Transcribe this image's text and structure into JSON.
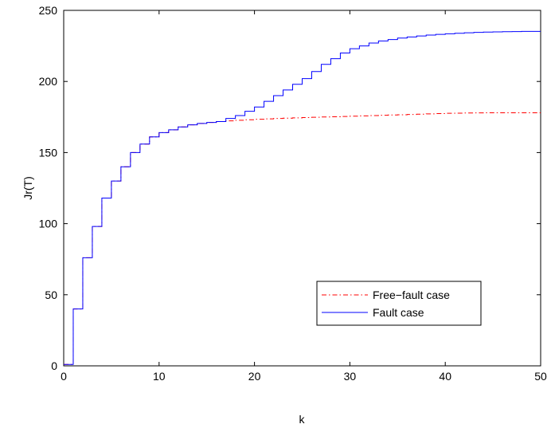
{
  "chart_data": {
    "type": "line",
    "title": "",
    "xlabel": "k",
    "ylabel": "Jr(T)",
    "xlim": [
      0,
      50
    ],
    "ylim": [
      0,
      250
    ],
    "xticks": [
      0,
      10,
      20,
      30,
      40,
      50
    ],
    "yticks": [
      0,
      50,
      100,
      150,
      200,
      250
    ],
    "grid": false,
    "legend_position": "lower-right",
    "step": true,
    "x": [
      0,
      1,
      2,
      3,
      4,
      5,
      6,
      7,
      8,
      9,
      10,
      11,
      12,
      13,
      14,
      15,
      16,
      17,
      18,
      19,
      20,
      21,
      22,
      23,
      24,
      25,
      26,
      27,
      28,
      29,
      30,
      31,
      32,
      33,
      34,
      35,
      36,
      37,
      38,
      39,
      40,
      41,
      42,
      43,
      44,
      45,
      46,
      47,
      48,
      49,
      50
    ],
    "series": [
      {
        "name": "Free−fault case",
        "color": "#ff0000",
        "style": "dash-dot",
        "values": [
          1,
          40,
          76,
          98,
          118,
          130,
          140,
          150,
          156,
          161,
          164,
          166,
          168,
          169.5,
          170.5,
          171.2,
          171.8,
          172.3,
          172.7,
          173.1,
          173.4,
          173.7,
          174.0,
          174.2,
          174.4,
          174.6,
          174.8,
          175.0,
          175.2,
          175.4,
          175.6,
          175.8,
          176.0,
          176.2,
          176.4,
          176.6,
          176.8,
          177.0,
          177.2,
          177.4,
          177.6,
          177.7,
          177.8,
          177.9,
          177.95,
          178,
          178,
          178,
          178,
          178,
          178
        ]
      },
      {
        "name": "Fault case",
        "color": "#0000ff",
        "style": "solid",
        "values": [
          1,
          40,
          76,
          98,
          118,
          130,
          140,
          150,
          156,
          161,
          164,
          166,
          168,
          169.5,
          170.5,
          171.2,
          171.8,
          174,
          176,
          179,
          182,
          186,
          190,
          194,
          198,
          202,
          207,
          212,
          216,
          220,
          223,
          225,
          227,
          228.5,
          229.5,
          230.5,
          231.3,
          232,
          232.6,
          233.1,
          233.5,
          233.9,
          234.2,
          234.5,
          234.7,
          234.9,
          235,
          235.1,
          235.2,
          235.2,
          235.2
        ]
      }
    ]
  }
}
